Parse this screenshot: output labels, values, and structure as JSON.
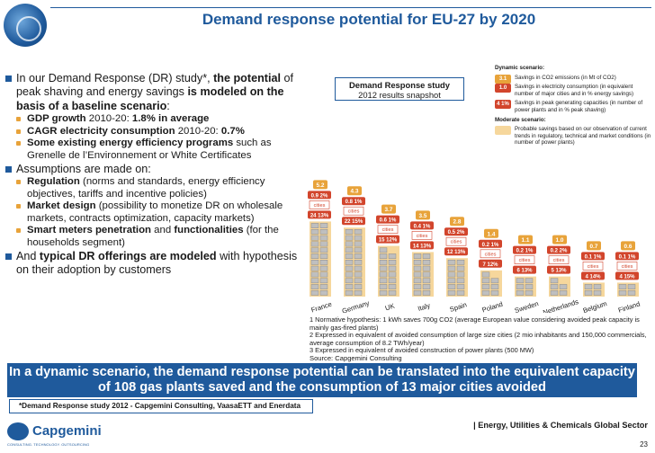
{
  "header": {
    "title": "Demand response potential for EU-27 by 2020"
  },
  "bullets": {
    "intro_pre": "In our Demand Response (DR) study*, ",
    "intro_bold": "the potential",
    "intro_mid": " of peak shaving and energy savings ",
    "intro_bold2": "is modeled on the basis of a baseline scenario",
    "intro_post": ":",
    "gdp_label": "GDP growth",
    "gdp_mid": " 2010-20: ",
    "gdp_value": "1.8% in average",
    "cagr_label": "CAGR electricity consumption",
    "cagr_mid": " 2010-20: ",
    "cagr_value": "0.7%",
    "existing_bold": "Some existing energy efficiency programs",
    "existing_rest": " such as Grenelle de l’Environnement or White Certificates",
    "assumptions": "Assumptions are made on:",
    "regulation_bold": "Regulation",
    "regulation_rest": " (norms and standards, energy efficiency objectives, tariffs and incentive policies)",
    "market_bold": "Market design",
    "market_rest": " (possibility to monetize DR on wholesale markets, contracts optimization, capacity markets)",
    "meters_bold": "Smart meters penetration",
    "meters_mid": " and ",
    "meters_bold2": "functionalities",
    "meters_rest": " (for the households segment)",
    "typical_pre": "And ",
    "typical_bold": "typical DR offerings are modeled",
    "typical_rest": " with hypothesis on their adoption by customers"
  },
  "snapshot": {
    "title": "Demand Response study",
    "subtitle": "2012 results snapshot"
  },
  "legend": {
    "dynamic_heading": "Dynamic scenario:",
    "moderate_heading": "Moderate scenario:",
    "items": [
      {
        "badge": "3.1",
        "color": "#e8a33a",
        "text": "Savings in CO2 emissions (in Mt of CO2)"
      },
      {
        "badge": "1.0 1%",
        "color": "#d2452c",
        "text": "Savings in electricity consumption (in equivalent number of major cities and in % energy savings)"
      },
      {
        "badge": "4 1%",
        "color": "#d2452c",
        "text": "Savings in peak generating capacities (in number of power plants and in % peak shaving)"
      }
    ],
    "moderate_text": "Probable savings based on our observation of current trends in regulatory, technical and market conditions (in number of power plants)"
  },
  "chart_data": {
    "type": "bar",
    "title": "",
    "categories": [
      "France",
      "Germany",
      "UK",
      "Italy",
      "Spain",
      "Poland",
      "Sweden",
      "Netherlands",
      "Belgium",
      "Finland"
    ],
    "series": [
      {
        "name": "CO2 emissions savings (Mt of CO2)",
        "values": [
          5.2,
          4.3,
          3.7,
          3.5,
          2.8,
          1.4,
          1.1,
          1.0,
          0.7,
          0.6
        ]
      },
      {
        "name": "Electricity consumption savings (cities)",
        "values": [
          0.9,
          0.8,
          0.6,
          0.4,
          0.5,
          0.2,
          0.2,
          0.2,
          0.1,
          0.1
        ]
      },
      {
        "name": "Electricity savings %",
        "values": [
          2,
          1,
          1,
          1,
          2,
          1,
          1,
          2,
          1,
          1
        ]
      },
      {
        "name": "Peak capacity savings (power plants)",
        "values": [
          24,
          22,
          15,
          14,
          12,
          7,
          6,
          5,
          4,
          4
        ]
      },
      {
        "name": "Peak shaving %",
        "values": [
          13,
          15,
          12,
          13,
          13,
          12,
          13,
          13,
          14,
          15
        ]
      }
    ],
    "badge_labels": {
      "co2": [
        "5.2",
        "4.3",
        "3.7",
        "3.5",
        "2.8",
        "1.4",
        "1.1",
        "1.0",
        "0.7",
        "0.6"
      ],
      "elec": [
        "0.9 2%",
        "0.8 1%",
        "0.6 1%",
        "0.4 1%",
        "0.5 2%",
        "0.2 1%",
        "0.2 1%",
        "0.2 2%",
        "0.1 1%",
        "0.1 1%"
      ],
      "peak": [
        "24 13%",
        "22 15%",
        "15 12%",
        "14 13%",
        "12 13%",
        "7 12%",
        "6 13%",
        "5 13%",
        "4 14%",
        "4 15%"
      ],
      "cities_label": "cities"
    },
    "plant_columns": [
      24,
      22,
      15,
      14,
      12,
      7,
      6,
      5,
      4,
      4
    ],
    "colors": {
      "co2": "#e8a33a",
      "elec": "#d2452c",
      "peak": "#d2452c",
      "moderate": "#f6d79c"
    }
  },
  "footnotes": [
    "1 Normative hypothesis: 1 kWh saves 700g CO2 (average European value considering avoided peak capacity is mainly gas-fired plants)",
    "2 Expressed in equivalent of avoided consumption of large size cities (2 mio inhabitants and 150,000 commercials, average consumption of 8.2 TWh/year)",
    "3 Expressed in equivalent of avoided construction of power plants (500 MW)"
  ],
  "source": "Source: Capgemini Consulting",
  "banner": "In a dynamic scenario, the demand response potential can be translated into the equivalent capacity of 108 gas plants saved and the consumption of 13 major cities avoided",
  "study_note": "*Demand Response study 2012 - Capgemini Consulting, VaasaETT and Enerdata",
  "brand": {
    "name": "Capgemini",
    "tagline": "CONSULTING. TECHNOLOGY. OUTSOURCING"
  },
  "sector": "| Energy, Utilities & Chemicals Global Sector",
  "page_number": "23"
}
